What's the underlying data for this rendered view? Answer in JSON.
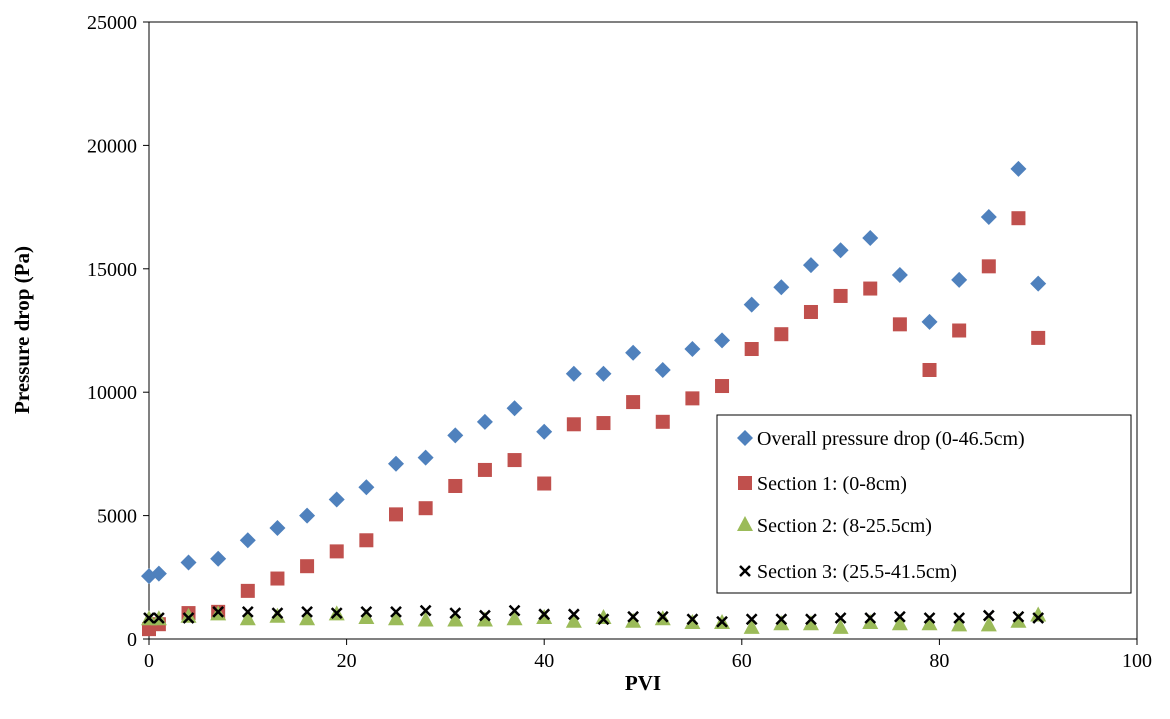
{
  "chart_data": {
    "type": "scatter",
    "title": "",
    "xlabel": "PVI",
    "ylabel": "Pressure drop (Pa)",
    "xlim": [
      0,
      100
    ],
    "ylim": [
      0,
      25000
    ],
    "xticks": [
      0,
      20,
      40,
      60,
      80,
      100
    ],
    "yticks": [
      0,
      5000,
      10000,
      15000,
      20000,
      25000
    ],
    "grid": false,
    "legend_position": "right",
    "series": [
      {
        "name": "Overall pressure drop (0-46.5cm)",
        "marker": "diamond",
        "color": "#4F81BD",
        "x": [
          0,
          1,
          4,
          7,
          10,
          13,
          16,
          19,
          22,
          25,
          28,
          31,
          34,
          37,
          40,
          43,
          46,
          49,
          52,
          55,
          58,
          61,
          64,
          67,
          70,
          73,
          76,
          79,
          82,
          85,
          88,
          90
        ],
        "y": [
          2550,
          2650,
          3100,
          3250,
          4000,
          4500,
          5000,
          5650,
          6150,
          7100,
          7350,
          8250,
          8800,
          9350,
          8400,
          10750,
          10750,
          11600,
          10900,
          11750,
          12100,
          13550,
          14250,
          15150,
          15750,
          16250,
          14750,
          12850,
          14550,
          17100,
          19050,
          14400
        ]
      },
      {
        "name": "Section 1: (0-8cm)",
        "marker": "square",
        "color": "#C0504D",
        "x": [
          0,
          1,
          4,
          7,
          10,
          13,
          16,
          19,
          22,
          25,
          28,
          31,
          34,
          37,
          40,
          43,
          46,
          49,
          52,
          55,
          58,
          61,
          64,
          67,
          70,
          73,
          76,
          79,
          82,
          85,
          88,
          90
        ],
        "y": [
          400,
          600,
          1050,
          1100,
          1950,
          2450,
          2950,
          3550,
          4000,
          5050,
          5300,
          6200,
          6850,
          7250,
          6300,
          8700,
          8750,
          9600,
          8800,
          9750,
          10250,
          11750,
          12350,
          13250,
          13900,
          14200,
          12750,
          10900,
          12500,
          15100,
          17050,
          12200
        ]
      },
      {
        "name": "Section 2: (8-25.5cm)",
        "marker": "triangle",
        "color": "#9BBB59",
        "x": [
          0,
          1,
          4,
          7,
          10,
          13,
          16,
          19,
          22,
          25,
          28,
          31,
          34,
          37,
          40,
          43,
          46,
          49,
          52,
          55,
          58,
          61,
          64,
          67,
          70,
          73,
          76,
          79,
          82,
          85,
          88,
          90
        ],
        "y": [
          800,
          800,
          900,
          1000,
          800,
          900,
          800,
          1000,
          850,
          800,
          750,
          750,
          750,
          800,
          850,
          700,
          850,
          700,
          800,
          650,
          650,
          450,
          600,
          600,
          450,
          650,
          600,
          600,
          550,
          550,
          700,
          950
        ]
      },
      {
        "name": "Section 3: (25.5-41.5cm)",
        "marker": "x",
        "color": "#000000",
        "x": [
          0,
          1,
          4,
          7,
          10,
          13,
          16,
          19,
          22,
          25,
          28,
          31,
          34,
          37,
          40,
          43,
          46,
          49,
          52,
          55,
          58,
          61,
          64,
          67,
          70,
          73,
          76,
          79,
          82,
          85,
          88,
          90
        ],
        "y": [
          850,
          850,
          850,
          1100,
          1100,
          1050,
          1100,
          1050,
          1100,
          1100,
          1150,
          1050,
          950,
          1150,
          1000,
          1000,
          800,
          900,
          900,
          800,
          700,
          800,
          800,
          800,
          850,
          850,
          900,
          850,
          850,
          950,
          900,
          850
        ]
      }
    ]
  }
}
